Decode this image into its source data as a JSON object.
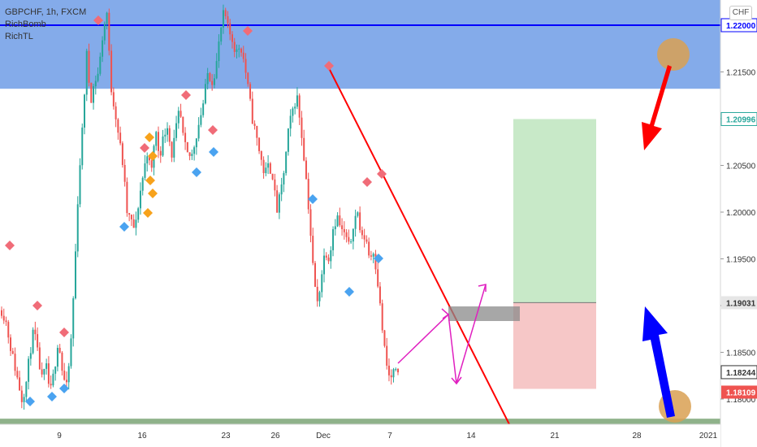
{
  "header": {
    "title": "GBPCHF, 1h, FXCM",
    "indicators": [
      "RichBomb",
      "RichTL"
    ],
    "currency_button": "CHF"
  },
  "colors": {
    "resistance_zone": "#5b8fe3",
    "support_zone": "#8fb28a",
    "bull_candle": "#26a69a",
    "bear_candle": "#ef5350",
    "trendline": "#ff0000",
    "target_zone": "#c8e9c8",
    "stop_zone": "#f6c7c7",
    "projection": "#e020c0",
    "bearish_arrow": "#ff0000",
    "bullish_arrow": "#0000ff",
    "marker_red": "#f06c78",
    "marker_blue": "#4aa3f0",
    "marker_orange": "#f7a21b",
    "circle": "#d9a052"
  },
  "chart_data": {
    "type": "candlestick",
    "symbol": "GBPCHF",
    "interval": "1h",
    "source": "FXCM",
    "y_axis": {
      "ticks": [
        1.18,
        1.185,
        1.19,
        1.195,
        1.2,
        1.205,
        1.21,
        1.215,
        1.22
      ],
      "tick_labels": [
        "1.18000",
        "1.18500",
        "1.19000",
        "1.19500",
        "1.20000",
        "1.20500",
        "1.21000",
        "1.21500",
        "1.22000"
      ],
      "range": [
        1.1764,
        1.2277
      ]
    },
    "x_axis": {
      "tick_labels": [
        "9",
        "16",
        "23",
        "26",
        "Dec",
        "7",
        "14",
        "21",
        "28",
        "2021"
      ]
    },
    "price_labels": [
      {
        "value": 1.22,
        "label": "1.22000",
        "color": "#0000ff"
      },
      {
        "value": 1.20996,
        "label": "1.20996",
        "color": "#26a69a"
      },
      {
        "value": 1.19031,
        "label": "1.19031",
        "color": "#555555"
      },
      {
        "value": 1.18244,
        "label": "1.18244",
        "color": "#ffffff"
      },
      {
        "value": 1.18109,
        "label": "1.18109",
        "color": "#ef5350"
      }
    ],
    "horizontal_line": 1.22,
    "zones": [
      {
        "name": "resistance",
        "from": 1.2132,
        "to": 1.2277
      },
      {
        "name": "support",
        "from": 1.1765,
        "to": 1.1779
      }
    ],
    "position": {
      "target": 1.20996,
      "entry": 1.19031,
      "stop": 1.18109
    },
    "price_path": [
      [
        1.1895,
        1.1885,
        1.186,
        1.184,
        1.182,
        1.18,
        1.1815,
        1.185,
        1.1875,
        1.1845
      ],
      [
        1.182,
        1.1835,
        1.1805,
        1.183,
        1.1865,
        1.183,
        1.181,
        1.185,
        1.193,
        1.203
      ],
      [
        1.209,
        1.217,
        1.212,
        1.214,
        1.215,
        1.219,
        1.2215,
        1.2135,
        1.211,
        1.208
      ],
      [
        1.205,
        1.2,
        1.199,
        1.198,
        1.2015,
        1.204,
        1.2065,
        1.204,
        1.209,
        1.206
      ],
      [
        1.208,
        1.2095,
        1.206,
        1.2085,
        1.211,
        1.2075,
        1.206,
        1.206,
        1.208,
        1.21
      ],
      [
        1.212,
        1.215,
        1.214,
        1.2155,
        1.219,
        1.2215,
        1.2195,
        1.2185,
        1.217,
        1.218
      ],
      [
        1.216,
        1.213,
        1.21,
        1.208,
        1.206,
        1.204,
        1.205,
        1.204,
        1.2,
        1.202
      ],
      [
        1.205,
        1.209,
        1.211,
        1.2125,
        1.209,
        1.205,
        1.2,
        1.194,
        1.19,
        1.193
      ],
      [
        1.196,
        1.195,
        1.1985,
        1.1995,
        1.198,
        1.1975,
        1.196,
        1.199,
        1.2,
        1.197
      ],
      [
        1.1975,
        1.195,
        1.196,
        1.1925,
        1.188,
        1.184,
        1.182,
        1.183,
        1.1824
      ]
    ]
  }
}
